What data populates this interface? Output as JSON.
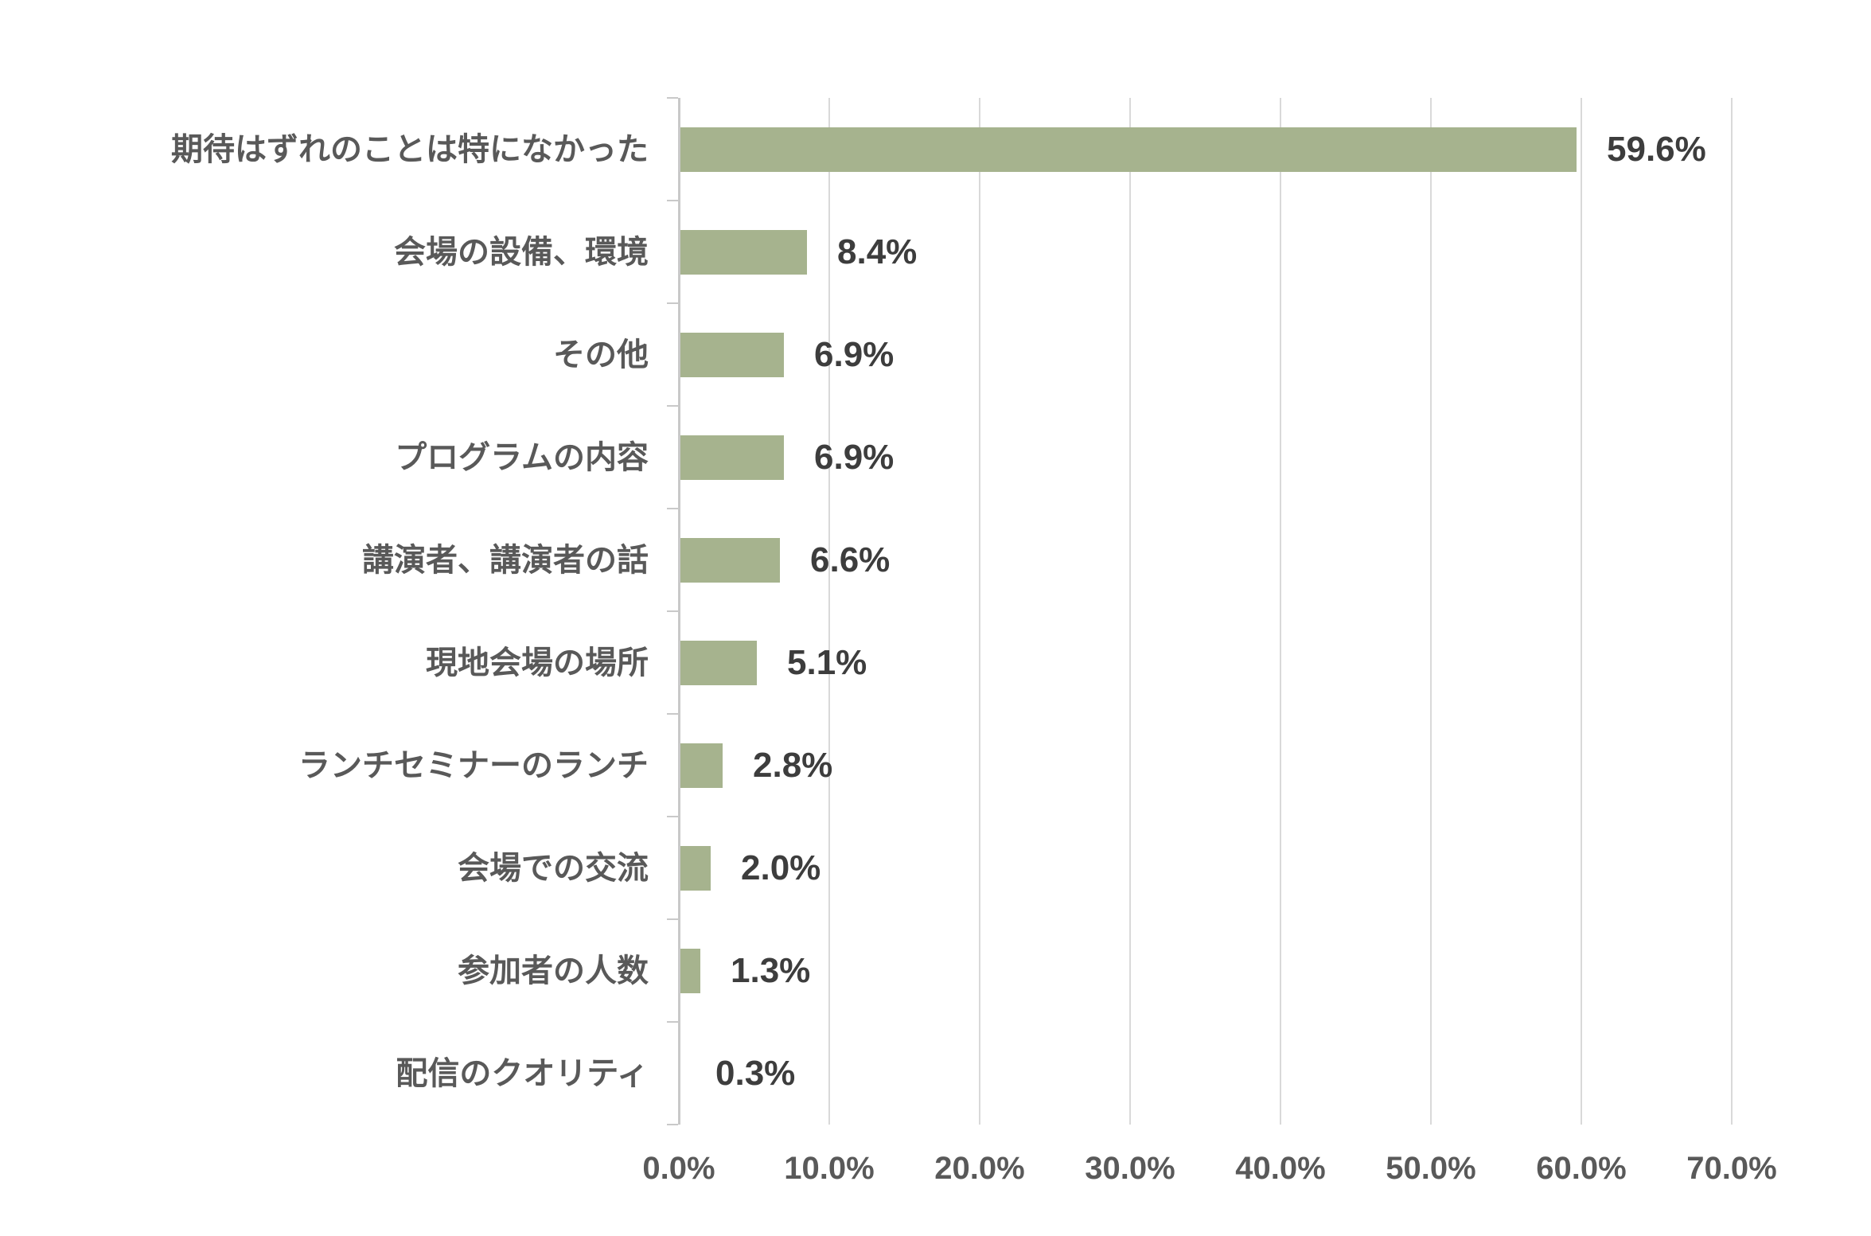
{
  "chart_data": {
    "type": "bar",
    "orientation": "horizontal",
    "title": "",
    "xlabel": "",
    "ylabel": "",
    "categories": [
      "期待はずれのことは特になかった",
      "会場の設備、環境",
      "その他",
      "プログラムの内容",
      "講演者、講演者の話",
      "現地会場の場所",
      "ランチセミナーのランチ",
      "会場での交流",
      "参加者の人数",
      "配信のクオリティ"
    ],
    "values": [
      59.6,
      8.4,
      6.9,
      6.9,
      6.6,
      5.1,
      2.8,
      2.0,
      1.3,
      0.3
    ],
    "value_labels": [
      "59.6%",
      "8.4%",
      "6.9%",
      "6.9%",
      "6.6%",
      "5.1%",
      "2.8%",
      "2.0%",
      "1.3%",
      "0.3%"
    ],
    "xlim": [
      0,
      70
    ],
    "x_tick_step": 10,
    "x_tick_labels": [
      "0.0%",
      "10.0%",
      "20.0%",
      "30.0%",
      "40.0%",
      "50.0%",
      "60.0%",
      "70.0%"
    ],
    "grid": true,
    "legend": "none",
    "colors": {
      "bar": "#a6b38e",
      "gridline": "#d9d9d9",
      "axis": "#c9c9c9",
      "category_label": "#595959",
      "value_label": "#3d3d3d",
      "x_tick_label": "#595959",
      "background": "#ffffff"
    }
  }
}
